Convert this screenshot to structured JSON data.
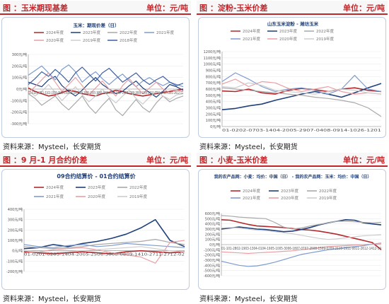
{
  "meta": {
    "source_label": "资料来源：Mysteel，长安期货"
  },
  "panels": [
    {
      "title": "图 ：玉米期现基差",
      "unit": "单位：元/吨"
    },
    {
      "title": "图 ：淀粉-玉米价差",
      "unit": "单位：元/吨"
    },
    {
      "title": "图 ：9 月-1 月合约价差",
      "unit": "单位：元/吨"
    },
    {
      "title": "图 ：小麦-玉米价差",
      "unit": "单位：元/吨"
    }
  ],
  "chart_data": [
    {
      "type": "line",
      "title": "玉米：期现价差（日）",
      "y_label_suffix": "元/吨",
      "ylim": [
        -300,
        300
      ],
      "yticks": [
        -300,
        -200,
        -100,
        0,
        100,
        200,
        300
      ],
      "xticklabels": "12-0101-1601-3102-1503-0103-1603-3104-1504-3005-1505-3006-1406-2907-1407-2908-1308-2809-1209-2710-1210-2711-1111-2612-11",
      "series": [
        {
          "name": "2024年度",
          "color": "#b2282c",
          "w": 1.6,
          "values": [
            10,
            -20,
            -40,
            -60,
            -50,
            -30,
            -10,
            -20,
            -40,
            -50,
            -60,
            -40,
            -30,
            -10,
            -20,
            -40,
            -50,
            -60,
            -50,
            -40,
            -30,
            -20,
            -10,
            0
          ]
        },
        {
          "name": "2023年度",
          "color": "#1f3f7a",
          "w": 1.2,
          "values": [
            60,
            40,
            20,
            80,
            110,
            30,
            -20,
            -60,
            -10,
            50,
            100,
            40,
            0,
            -40,
            -20,
            30,
            70,
            10,
            -30,
            -70,
            -20,
            40,
            20,
            -10
          ]
        },
        {
          "name": "2022年度",
          "color": "#a9a9a9",
          "w": 1.2,
          "values": [
            -40,
            -80,
            -140,
            -100,
            -60,
            -130,
            -180,
            -120,
            -60,
            -150,
            -210,
            -140,
            -80,
            -180,
            -230,
            -160,
            -90,
            -160,
            -200,
            -120,
            -60,
            -110,
            -80,
            -60
          ]
        },
        {
          "name": "2021年度",
          "color": "#7d9bd0",
          "w": 1.2,
          "values": [
            120,
            160,
            200,
            140,
            80,
            170,
            210,
            150,
            60,
            110,
            150,
            90,
            40,
            90,
            130,
            70,
            20,
            70,
            100,
            60,
            30,
            60,
            40,
            20
          ]
        },
        {
          "name": "2020年度",
          "color": "#e8a0a4",
          "w": 1.2,
          "values": [
            -30,
            20,
            80,
            140,
            60,
            -20,
            40,
            100,
            30,
            -50,
            10,
            70,
            0,
            -60,
            30,
            90,
            20,
            -40,
            10,
            60,
            0,
            -30,
            -10,
            -20
          ]
        },
        {
          "name": "2019年度",
          "color": "#cdcdcd",
          "w": 1.2,
          "values": [
            -10,
            -60,
            -20,
            40,
            -30,
            -100,
            -40,
            20,
            -50,
            -110,
            -60,
            0,
            -70,
            -120,
            -60,
            -10,
            -80,
            -130,
            -70,
            -20,
            -60,
            -90,
            -50,
            -40
          ]
        },
        {
          "name": "2018年度",
          "color": "#3c5fa6",
          "w": 1.2,
          "values": [
            40,
            90,
            150,
            110,
            170,
            120,
            60,
            140,
            190,
            130,
            70,
            140,
            180,
            120,
            60,
            100,
            140,
            80,
            40,
            80,
            110,
            60,
            30,
            50
          ]
        }
      ]
    },
    {
      "type": "line",
      "title": "山东玉米淀粉 - 潍坊玉米",
      "y_label_suffix": "元/吨",
      "ylim": [
        0,
        1200
      ],
      "yticks": [
        0,
        100,
        200,
        300,
        400,
        500,
        600,
        700,
        800,
        900,
        1000,
        1100,
        1200
      ],
      "xticklabels": "01-0202-0703-1404-2005-2907-0408-0914-1026-1201",
      "series": [
        {
          "name": "2024年度",
          "color": "#b2282c",
          "w": 1.6,
          "values": [
            570,
            560,
            600,
            540,
            520,
            580,
            610,
            590,
            560,
            600,
            620,
            580,
            560
          ]
        },
        {
          "name": "2023年度",
          "color": "#1f3f7a",
          "w": 1.6,
          "values": [
            270,
            290,
            330,
            360,
            420,
            470,
            520,
            560,
            520,
            470,
            540,
            620,
            690
          ]
        },
        {
          "name": "2022年度",
          "color": "#a9a9a9",
          "w": 1.2,
          "values": [
            620,
            600,
            580,
            560,
            540,
            520,
            500,
            470,
            450,
            420,
            380,
            300,
            160
          ]
        },
        {
          "name": "2021年度",
          "color": "#7d9bd0",
          "w": 1.2,
          "values": [
            720,
            860,
            760,
            640,
            560,
            600,
            620,
            580,
            520,
            600,
            820,
            600,
            560
          ]
        },
        {
          "name": "2020年度",
          "color": "#e8a0a4",
          "w": 1.2,
          "values": [
            680,
            760,
            640,
            720,
            700,
            610,
            560,
            600,
            640,
            560,
            520,
            540,
            520
          ]
        },
        {
          "name": "2019年度",
          "color": "#cdcdcd",
          "w": 1.2,
          "values": [
            640,
            620,
            700,
            660,
            580,
            560,
            540,
            520,
            560,
            600,
            580,
            540,
            520
          ]
        }
      ]
    },
    {
      "type": "line",
      "title": "09合约结算价 - 01合约结算价",
      "y_label_suffix": "元/吨",
      "ylim": [
        -200,
        400
      ],
      "yticks": [
        -200,
        -100,
        0,
        100,
        200,
        300,
        400
      ],
      "xticklabels": "01-0201-0203-1404-2005-2506-3008-0809-1410-2711-2712-02",
      "series": [
        {
          "name": "2024年度",
          "color": "#b2282c",
          "w": 1.6,
          "values": [
            -10,
            -20,
            -30,
            -20,
            -10,
            -20,
            -30,
            -10,
            0,
            -10,
            -20,
            -10
          ]
        },
        {
          "name": "2023年度",
          "color": "#1f3f7a",
          "w": 1.6,
          "values": [
            20,
            30,
            60,
            40,
            70,
            90,
            120,
            160,
            220,
            300,
            100,
            40
          ]
        },
        {
          "name": "2022年度",
          "color": "#a9a9a9",
          "w": 1.2,
          "values": [
            40,
            30,
            20,
            30,
            40,
            60,
            70,
            80,
            90,
            110,
            80,
            60
          ]
        },
        {
          "name": "2021年度",
          "color": "#7d9bd0",
          "w": 1.2,
          "values": [
            60,
            40,
            30,
            50,
            60,
            40,
            50,
            70,
            60,
            50,
            40,
            30
          ]
        },
        {
          "name": "2020年度",
          "color": "#e8a0a4",
          "w": 1.2,
          "values": [
            -20,
            -10,
            10,
            20,
            30,
            10,
            -20,
            -40,
            -60,
            -120,
            80,
            100
          ]
        },
        {
          "name": "2019年度",
          "color": "#cdcdcd",
          "w": 1.2,
          "values": [
            0,
            -10,
            -20,
            -10,
            0,
            10,
            20,
            30,
            40,
            20,
            0,
            -10
          ]
        }
      ]
    },
    {
      "type": "line",
      "title": "我的农产品网：小麦：均价：中国（日） - 我的农产品网：玉米：均价：中国（日）",
      "y_label_suffix": "元/吨",
      "ylim": [
        -600,
        600
      ],
      "yticks": [
        -600,
        -500,
        -400,
        -300,
        -200,
        -100,
        0,
        100,
        200,
        300,
        400,
        500,
        600
      ],
      "xticklabels": "01-101-2802-1903-1304-0104-1905-1005-3006-1807-0707-2508-1509-0209-2110-1911-0811-2612-1412-30",
      "series": [
        {
          "name": "2024年度",
          "color": "#b2282c",
          "w": 1.6,
          "values": [
            480,
            470,
            430,
            390,
            360,
            350,
            340,
            330,
            310,
            290,
            280,
            260,
            230,
            200,
            160,
            120,
            80,
            40,
            -100
          ]
        },
        {
          "name": "2023年度",
          "color": "#1f3f7a",
          "w": 1.6,
          "values": [
            300,
            320,
            340,
            320,
            300,
            290,
            270,
            250,
            260,
            290,
            330,
            380,
            420,
            450,
            480,
            470,
            420,
            400,
            380
          ]
        },
        {
          "name": "2022年度",
          "color": "#a9a9a9",
          "w": 1.2,
          "values": [
            560,
            550,
            530,
            520,
            510,
            500,
            430,
            340,
            300,
            320,
            360,
            390,
            420,
            450,
            450,
            440,
            430,
            420,
            430
          ]
        },
        {
          "name": "2021年度",
          "color": "#7d9bd0",
          "w": 1.2,
          "values": [
            -320,
            -360,
            -400,
            -420,
            -410,
            -380,
            -340,
            -290,
            -240,
            -190,
            -160,
            -130,
            -100,
            -80,
            -60,
            -40,
            -20,
            10,
            30
          ]
        },
        {
          "name": "2020年度",
          "color": "#e8a0a4",
          "w": 1.2,
          "values": [
            -140,
            -150,
            -160,
            -170,
            -160,
            -150,
            -140,
            -130,
            -120,
            -100,
            -80,
            -60,
            -40,
            -30,
            -20,
            -10,
            0,
            10,
            20
          ]
        },
        {
          "name": "2019年度",
          "color": "#cdcdcd",
          "w": 1.2,
          "values": [
            320,
            330,
            320,
            300,
            280,
            270,
            250,
            230,
            210,
            180,
            150,
            120,
            100,
            110,
            130,
            150,
            170,
            180,
            190
          ]
        }
      ]
    }
  ]
}
